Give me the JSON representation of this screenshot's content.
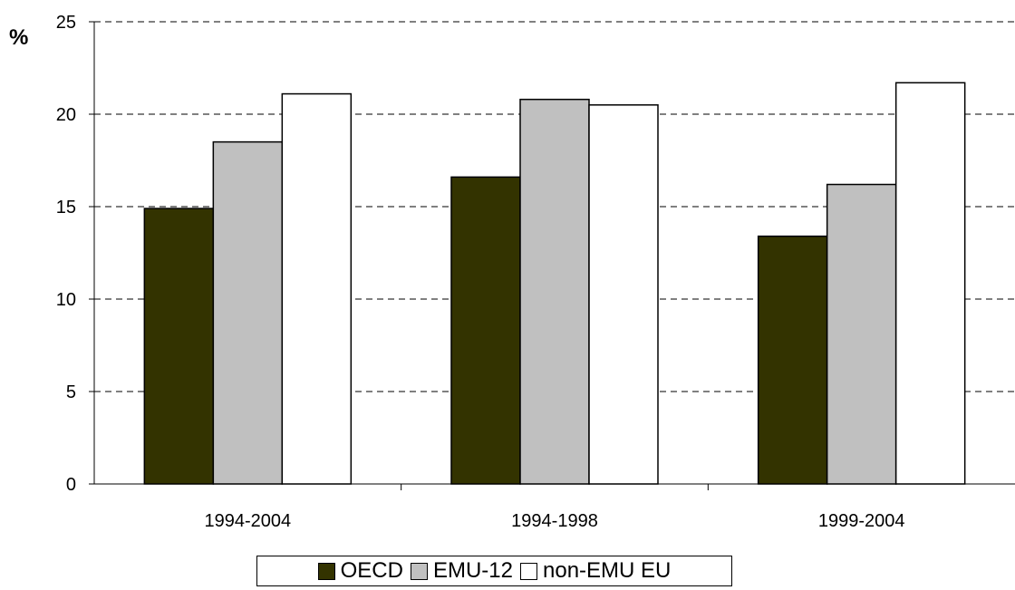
{
  "chart_data": {
    "type": "bar",
    "ylabel": "%",
    "ylim": [
      0,
      25
    ],
    "yticks": [
      "0",
      "5",
      "10",
      "15",
      "20",
      "25"
    ],
    "categories": [
      "1994-2004",
      "1994-1998",
      "1999-2004"
    ],
    "series": [
      {
        "name": "OECD",
        "color": "#333300",
        "values": [
          14.9,
          16.6,
          13.4
        ]
      },
      {
        "name": "EMU-12",
        "color": "#c0c0c0",
        "values": [
          18.5,
          20.8,
          16.2
        ]
      },
      {
        "name": "non-EMU EU",
        "color": "#ffffff",
        "values": [
          21.1,
          20.5,
          21.7
        ]
      }
    ],
    "grid": "horizontal dashed",
    "legend": "bottom"
  }
}
